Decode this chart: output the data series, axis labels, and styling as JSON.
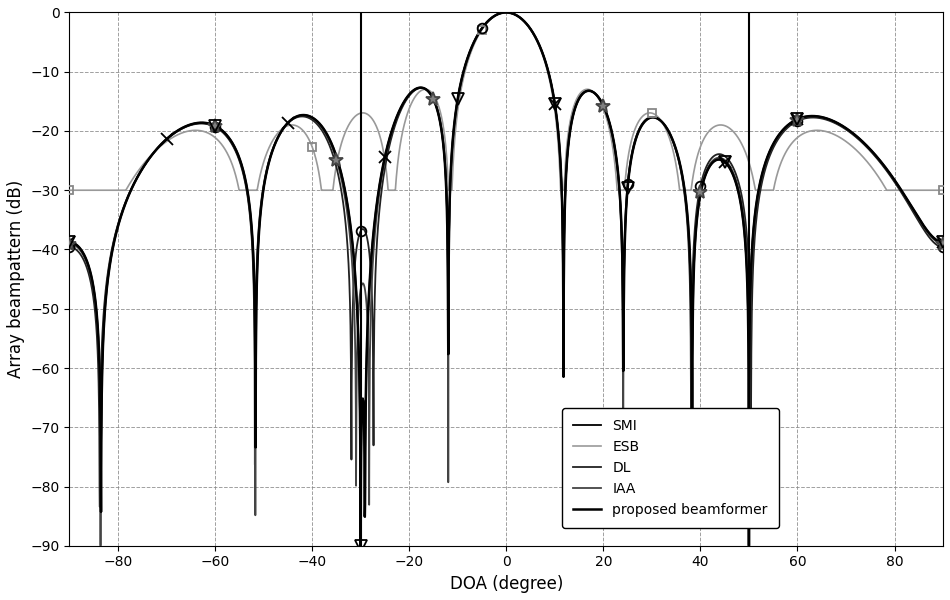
{
  "xlabel": "DOA (degree)",
  "ylabel": "Array beampattern (dB)",
  "xlim": [
    -90,
    90
  ],
  "ylim": [
    -90,
    0
  ],
  "xticks": [
    -80,
    -60,
    -40,
    -20,
    0,
    20,
    40,
    60,
    80
  ],
  "yticks": [
    0,
    -10,
    -20,
    -30,
    -40,
    -50,
    -60,
    -70,
    -80,
    -90
  ],
  "vlines": [
    -30,
    50
  ],
  "legend_labels": [
    "SMI",
    "ESB",
    "DL",
    "IAA",
    "proposed beamformer"
  ],
  "colors": [
    "#000000",
    "#999999",
    "#222222",
    "#444444",
    "#000000"
  ],
  "linewidths": [
    1.3,
    1.2,
    1.3,
    1.3,
    1.8
  ],
  "markers": [
    "x",
    "s",
    "o",
    "*",
    "v"
  ],
  "marker_sizes": [
    8,
    6,
    7,
    10,
    8
  ],
  "grid": true,
  "figsize": [
    9.5,
    6.0
  ],
  "dpi": 100
}
